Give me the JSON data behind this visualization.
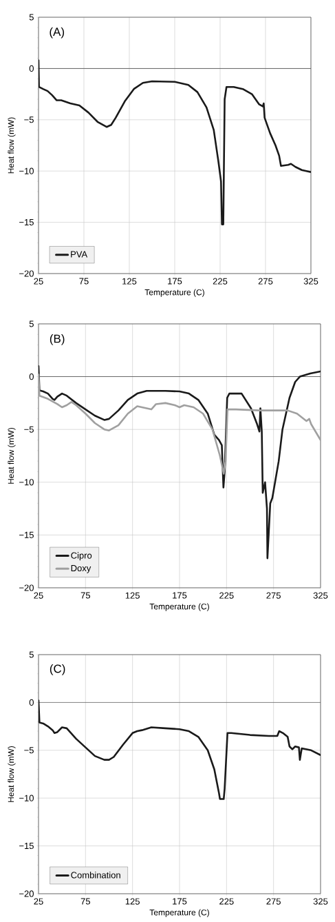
{
  "chart_data": [
    {
      "type": "line",
      "annotations": [
        "(A)"
      ],
      "xlabel": "Temperature (C)",
      "ylabel": "Heat flow (mW)",
      "xlim": [
        25,
        325
      ],
      "ylim": [
        -20,
        5
      ],
      "xticks": [
        25,
        75,
        125,
        175,
        225,
        275,
        325
      ],
      "yticks": [
        {
          "value": -20,
          "label": "−20"
        },
        {
          "value": -15,
          "label": "−15"
        },
        {
          "value": -10,
          "label": "−10"
        },
        {
          "value": -5,
          "label": "−5"
        },
        0,
        5
      ],
      "grid": true,
      "legend": "bottom left",
      "ref_lines": [
        {
          "axis": "y",
          "value": 0,
          "color": "#404040"
        }
      ],
      "series": [
        {
          "name": "PVA",
          "color": "#1a1a1a",
          "x": [
            25,
            25.5,
            30,
            35,
            40,
            45,
            50,
            60,
            70,
            80,
            90,
            100,
            105,
            110,
            120,
            130,
            140,
            150,
            175,
            190,
            200,
            210,
            218,
            223,
            226,
            227,
            228.5,
            230,
            232,
            240,
            250,
            260,
            268,
            272,
            273,
            274,
            280,
            286,
            290,
            292,
            300,
            303,
            308,
            315,
            320,
            325
          ],
          "values": [
            0.8,
            -1.8,
            -2,
            -2.2,
            -2.6,
            -3.1,
            -3.1,
            -3.4,
            -3.6,
            -4.3,
            -5.2,
            -5.7,
            -5.5,
            -4.8,
            -3.2,
            -2,
            -1.4,
            -1.25,
            -1.3,
            -1.6,
            -2.3,
            -3.8,
            -6,
            -9,
            -11,
            -15.2,
            -15.2,
            -3,
            -1.8,
            -1.8,
            -2,
            -2.5,
            -3.5,
            -3.7,
            -3.4,
            -4.8,
            -6.3,
            -7.5,
            -8.5,
            -9.5,
            -9.4,
            -9.3,
            -9.6,
            -9.9,
            -10,
            -10.1
          ]
        }
      ]
    },
    {
      "type": "line",
      "annotations": [
        "(B)"
      ],
      "xlabel": "Temperature (C)",
      "ylabel": "Heat flow (mW)",
      "xlim": [
        25,
        325
      ],
      "ylim": [
        -20,
        5
      ],
      "xticks": [
        25,
        75,
        125,
        175,
        225,
        275,
        325
      ],
      "yticks": [
        {
          "value": -20,
          "label": "−20"
        },
        {
          "value": -15,
          "label": "−15"
        },
        {
          "value": -10,
          "label": "−10"
        },
        {
          "value": -5,
          "label": "−5"
        },
        0,
        5
      ],
      "grid": true,
      "legend": "bottom left",
      "ref_lines": [
        {
          "axis": "y",
          "value": 0,
          "color": "#404040"
        }
      ],
      "series": [
        {
          "name": "Cipro",
          "color": "#1a1a1a",
          "x": [
            25,
            26,
            30,
            35,
            40,
            42,
            45,
            50,
            55,
            65,
            75,
            85,
            95,
            100,
            110,
            120,
            130,
            140,
            160,
            175,
            185,
            195,
            205,
            212,
            217,
            220,
            221.7,
            223,
            225.7,
            228,
            241,
            251,
            257.5,
            260,
            261,
            262.5,
            263.5,
            266,
            268,
            268.5,
            271.5,
            273.7,
            280.5,
            284.5,
            292,
            298,
            303,
            314,
            325
          ],
          "values": [
            1,
            -1.3,
            -1.4,
            -1.6,
            -2.1,
            -2.2,
            -1.9,
            -1.6,
            -1.8,
            -2.5,
            -3.1,
            -3.7,
            -4.1,
            -4,
            -3.2,
            -2.2,
            -1.6,
            -1.35,
            -1.35,
            -1.4,
            -1.6,
            -2.2,
            -3.5,
            -5.5,
            -6,
            -6.5,
            -10.5,
            -9,
            -2,
            -1.6,
            -1.6,
            -3,
            -4.5,
            -5.2,
            -3,
            -5.2,
            -11,
            -10,
            -12.5,
            -17.2,
            -12,
            -11.5,
            -8,
            -5,
            -2,
            -0.5,
            0,
            0.3,
            0.5
          ]
        },
        {
          "name": "Doxy",
          "color": "#a0a0a0",
          "x": [
            25,
            26,
            35,
            45,
            50,
            55,
            60,
            65,
            75,
            85,
            95,
            100,
            110,
            120,
            130,
            135,
            145,
            150,
            160,
            170,
            175,
            180,
            190,
            200,
            210,
            218,
            222,
            224,
            226,
            235,
            260,
            290,
            300,
            310,
            313,
            315,
            325
          ],
          "values": [
            0.2,
            -1.8,
            -2.1,
            -2.6,
            -2.9,
            -2.7,
            -2.4,
            -2.7,
            -3.5,
            -4.4,
            -5,
            -5.1,
            -4.6,
            -3.5,
            -2.8,
            -2.9,
            -3.1,
            -2.6,
            -2.5,
            -2.7,
            -2.9,
            -2.7,
            -2.9,
            -3.5,
            -5,
            -7.5,
            -9.2,
            -8,
            -3.1,
            -3.1,
            -3.2,
            -3.2,
            -3.5,
            -4.2,
            -4,
            -4.5,
            -6
          ]
        }
      ]
    },
    {
      "type": "line",
      "annotations": [
        "(C)"
      ],
      "xlabel": "Temperature (C)",
      "ylabel": "Heat flow (mW)",
      "xlim": [
        25,
        325
      ],
      "ylim": [
        -20,
        5
      ],
      "xticks": [
        25,
        75,
        125,
        175,
        225,
        275,
        325
      ],
      "yticks": [
        {
          "value": -20,
          "label": "−20"
        },
        {
          "value": -15,
          "label": "−15"
        },
        {
          "value": -10,
          "label": "−10"
        },
        {
          "value": -5,
          "label": "−5"
        },
        0,
        5
      ],
      "grid": true,
      "legend": "bottom left",
      "ref_lines": [
        {
          "axis": "y",
          "value": 0,
          "color": "#404040"
        }
      ],
      "series": [
        {
          "name": "Combination",
          "color": "#1a1a1a",
          "x": [
            25,
            26,
            30,
            35,
            40,
            42,
            45,
            50,
            55,
            65,
            75,
            85,
            95,
            100,
            105,
            115,
            125,
            130,
            135,
            145,
            160,
            175,
            185,
            195,
            205,
            212,
            217,
            218,
            222,
            223,
            226,
            230,
            250,
            270,
            279,
            281,
            285,
            290,
            292,
            295,
            298,
            302,
            303,
            305,
            315,
            325
          ],
          "values": [
            0.2,
            -2.1,
            -2.2,
            -2.5,
            -2.9,
            -3.2,
            -3.1,
            -2.6,
            -2.7,
            -3.8,
            -4.7,
            -5.6,
            -6,
            -6,
            -5.7,
            -4.4,
            -3.2,
            -3,
            -2.9,
            -2.6,
            -2.7,
            -2.8,
            -3,
            -3.6,
            -5,
            -7,
            -9.5,
            -10.1,
            -10.1,
            -9,
            -3.2,
            -3.2,
            -3.4,
            -3.5,
            -3.5,
            -3,
            -3.2,
            -3.6,
            -4.6,
            -4.9,
            -4.6,
            -4.7,
            -6,
            -4.8,
            -5,
            -5.5
          ]
        }
      ]
    }
  ]
}
